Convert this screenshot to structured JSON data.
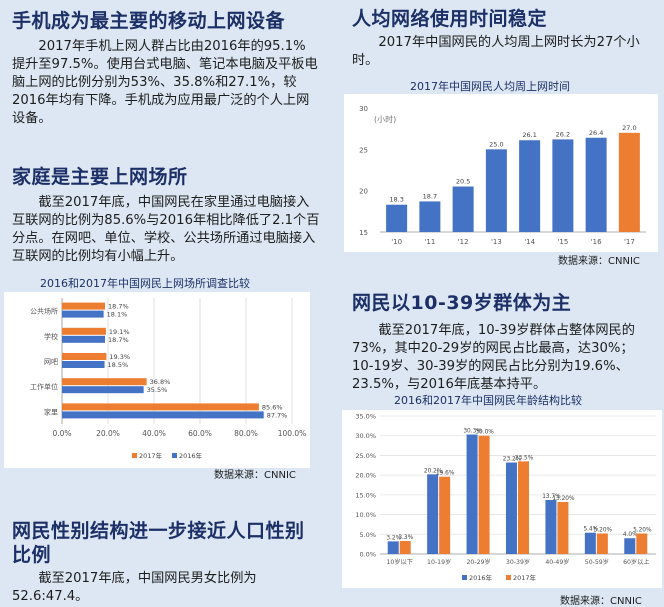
{
  "left": {
    "section1": {
      "heading": "手机成为最主要的移动上网设备",
      "paragraph": "2017年手机上网人群占比由2016年的95.1%提升至97.5%。使用台式电脑、笔记本电脑及平板电脑上网的比例分别为53%、35.8%和27.1%，较2016年均有下降。手机成为应用最广泛的个人上网设备。"
    },
    "section2": {
      "heading": "家庭是主要上网场所",
      "paragraph": "截至2017年底，中国网民在家里通过电脑接入互联网的比例为85.6%与2016年相比降低了2.1个百分点。在网吧、单位、学校、公共场所通过电脑接入互联网的比例均有小幅上升。",
      "chart_title": "2016和2017年中国网民上网场所调查比较",
      "source": "数据来源：CNNIC"
    },
    "section3": {
      "heading_line1": "网民性别结构进一步接近人口性别",
      "heading_line2": "比例",
      "paragraph": "截至2017年底，中国网民男女比例为52.6:47.4。"
    }
  },
  "right": {
    "section1": {
      "heading": "人均网络使用时间稳定",
      "paragraph": "2017年中国网民的人均周上网时长为27个小时。",
      "chart_title": "2017年中国网民人均周上网时间",
      "source": "数据来源：CNNIC"
    },
    "section2": {
      "heading": "网民以10-39岁群体为主",
      "paragraph": "截至2017年底，10-39岁群体占整体网民的73%，其中20-29岁的网民占比最高，达30%；10-19岁、30-39岁的网民占比分别为19.6%、23.5%，与2016年底基本持平。",
      "chart_title": "2016和2017年中国网民年龄结构比较",
      "source": "数据来源：CNNIC"
    }
  },
  "colors": {
    "blue": "#4472c4",
    "orange": "#ed7d31",
    "heading": "#1c2f66",
    "background": "#dce7f3"
  },
  "chart_data": [
    {
      "type": "bar",
      "orientation": "horizontal",
      "title": "2016和2017年中国网民上网场所调查比较",
      "categories": [
        "公共场所",
        "学校",
        "网吧",
        "工作单位",
        "家里"
      ],
      "series": [
        {
          "name": "2017年",
          "values": [
            18.7,
            19.1,
            19.3,
            36.8,
            85.6
          ]
        },
        {
          "name": "2016年",
          "values": [
            18.1,
            18.7,
            18.5,
            35.5,
            87.7
          ]
        }
      ],
      "value_labels": {
        "2017年": [
          "18.7%",
          "19.1%",
          "19.3%",
          "36.8%",
          "85.6%"
        ],
        "2016年": [
          "18.1%",
          "18.7%",
          "18.5%",
          "35.5%",
          "87.7%"
        ]
      },
      "xlim": [
        0,
        100
      ],
      "xticks": [
        "0.0%",
        "20.0%",
        "40.0%",
        "60.0%",
        "80.0%",
        "100.0%"
      ],
      "legend": "bottom"
    },
    {
      "type": "bar",
      "title": "2017年中国网民人均周上网时间",
      "ylabel": "(小时)",
      "categories": [
        "'10",
        "'11",
        "'12",
        "'13",
        "'14",
        "'15",
        "'16",
        "'17"
      ],
      "values": [
        18.3,
        18.7,
        20.5,
        25.0,
        26.1,
        26.2,
        26.4,
        27.0
      ],
      "value_labels": [
        "18.3",
        "18.7",
        "20.5",
        "25.0",
        "26.1",
        "26.2",
        "26.4",
        "27.0"
      ],
      "highlight": "'17",
      "ylim": [
        15,
        30
      ],
      "yticks": [
        "15",
        "20",
        "25",
        "30"
      ]
    },
    {
      "type": "bar",
      "title": "2016和2017年中国网民年龄结构比较",
      "categories": [
        "10岁以下",
        "10-19岁",
        "20-29岁",
        "30-39岁",
        "40-49岁",
        "50-59岁",
        "60岁以上"
      ],
      "series": [
        {
          "name": "2016年",
          "values": [
            3.2,
            20.2,
            30.3,
            23.2,
            13.7,
            5.4,
            4.0
          ]
        },
        {
          "name": "2017年",
          "values": [
            3.3,
            19.6,
            30.0,
            23.5,
            13.2,
            5.2,
            5.2
          ]
        }
      ],
      "value_labels": {
        "2016年": [
          "3.2%",
          "20.2%",
          "30.3%",
          "23.2%",
          "13.7%",
          "5.4%",
          "4.0%"
        ],
        "2017年": [
          "3.3%",
          "19.6%",
          "30.0%",
          "23.5%",
          "13.20%",
          "5.20%",
          "5.20%"
        ]
      },
      "ylim": [
        0,
        35
      ],
      "yticks": [
        "0.0%",
        "5.0%",
        "10.0%",
        "15.0%",
        "20.0%",
        "25.0%",
        "30.0%",
        "35.0%"
      ],
      "legend": "bottom"
    }
  ]
}
